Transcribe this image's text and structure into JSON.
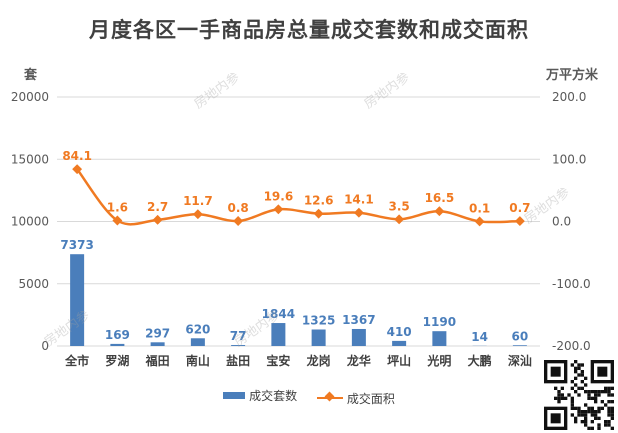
{
  "chart_data": {
    "type": "bar+line",
    "title": "月度各区一手商品房总量成交套数和成交面积",
    "left_axis_unit": "套",
    "right_axis_unit": "万平方米",
    "categories": [
      "全市",
      "罗湖",
      "福田",
      "南山",
      "盐田",
      "宝安",
      "龙岗",
      "龙华",
      "坪山",
      "光明",
      "大鹏",
      "深汕"
    ],
    "series": [
      {
        "name": "成交套数",
        "type": "bar",
        "axis": "left",
        "color": "#4a7ebb",
        "values": [
          7373,
          169,
          297,
          620,
          77,
          1844,
          1325,
          1367,
          410,
          1190,
          14,
          60
        ]
      },
      {
        "name": "成交面积",
        "type": "line",
        "axis": "right",
        "color": "#f07a22",
        "values": [
          84.1,
          1.6,
          2.7,
          11.7,
          0.8,
          19.6,
          12.6,
          14.1,
          3.5,
          16.5,
          0.1,
          0.7
        ]
      }
    ],
    "left_ylim": [
      0,
      20000
    ],
    "left_ticks": [
      "0",
      "5000",
      "10000",
      "15000",
      "20000"
    ],
    "right_ylim": [
      -200,
      200
    ],
    "right_ticks": [
      "-200.0",
      "-100.0",
      "0.0",
      "100.0",
      "200.0"
    ],
    "legend_position": "bottom",
    "grid": true
  },
  "watermark_text": "房地内参",
  "qr_code": "qr-code-icon"
}
